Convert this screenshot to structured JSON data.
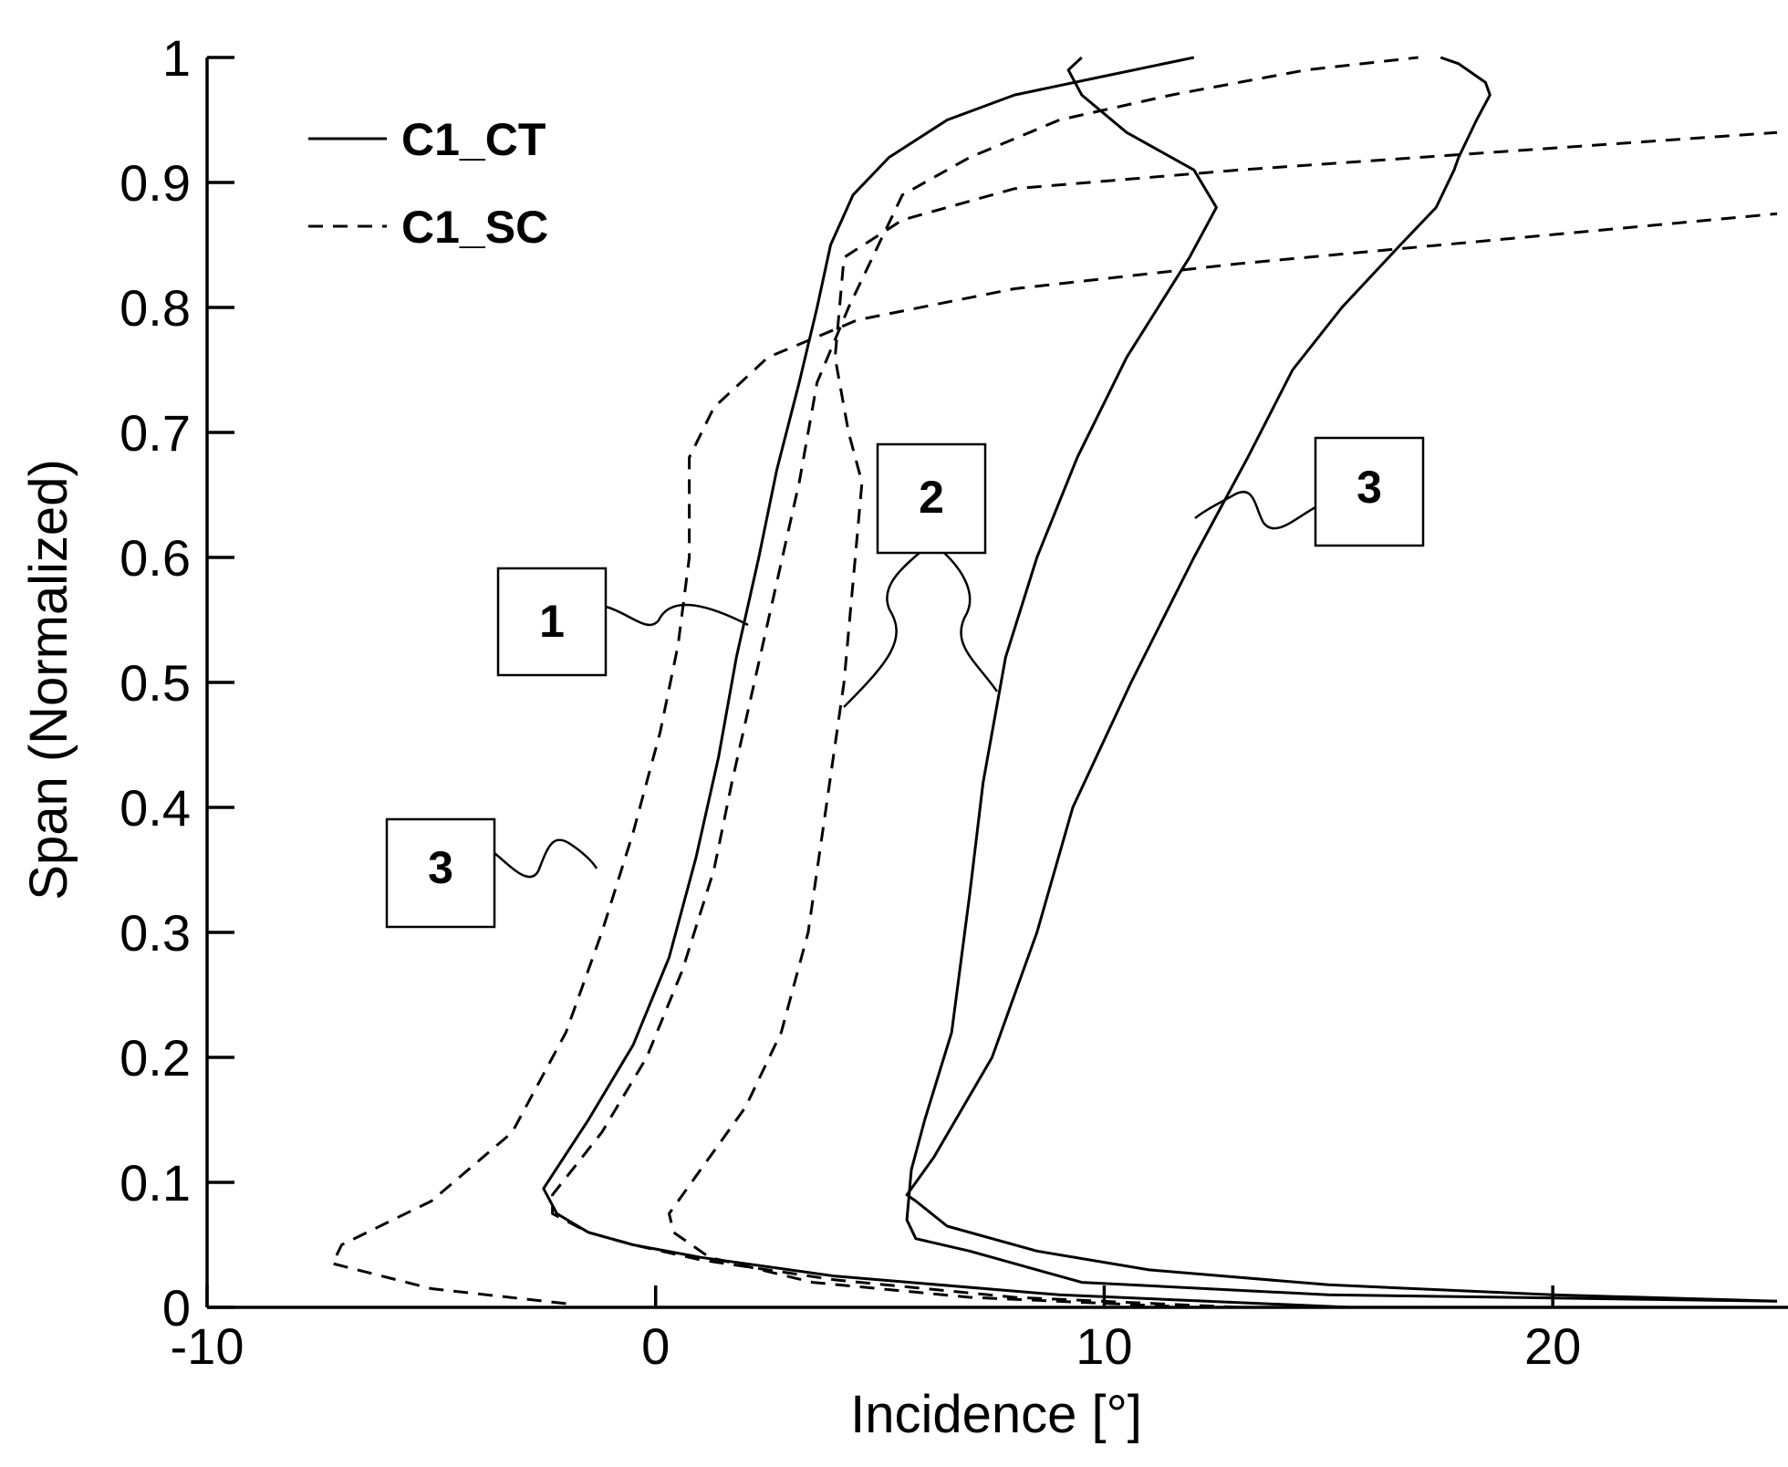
{
  "chart_data": {
    "type": "line",
    "title": "",
    "xlabel": "Incidence [°]",
    "ylabel": "Span (Normalized)",
    "xlim": [
      -10,
      25
    ],
    "ylim": [
      0,
      1
    ],
    "xticks": [
      -10,
      0,
      10,
      20
    ],
    "xtick_labels": [
      "-10",
      "0",
      "10",
      "20"
    ],
    "yticks": [
      0,
      0.1,
      0.2,
      0.3,
      0.4,
      0.5,
      0.6,
      0.7,
      0.8,
      0.9,
      1
    ],
    "ytick_labels": [
      "0",
      "0.1",
      "0.2",
      "0.3",
      "0.4",
      "0.5",
      "0.6",
      "0.7",
      "0.8",
      "0.9",
      "1"
    ],
    "grid": false,
    "legend_position": "top-left",
    "legend": [
      {
        "label": "C1_CT",
        "style": "solid"
      },
      {
        "label": "C1_SC",
        "style": "dashed"
      }
    ],
    "series": [
      {
        "group": "C1_CT",
        "label": "1",
        "style": "solid",
        "x": [
          15.5,
          9.0,
          4.0,
          1.0,
          -0.5,
          -1.5,
          -2.2,
          -2.5,
          -1.5,
          -0.5,
          0.3,
          0.9,
          1.4,
          1.8,
          2.3,
          2.7,
          3.2,
          3.6,
          3.9,
          4.4,
          5.2,
          6.5,
          8.0,
          10.0,
          12.0
        ],
        "y": [
          0.0,
          0.01,
          0.025,
          0.04,
          0.05,
          0.06,
          0.075,
          0.095,
          0.15,
          0.21,
          0.28,
          0.36,
          0.44,
          0.52,
          0.6,
          0.67,
          0.74,
          0.8,
          0.85,
          0.89,
          0.92,
          0.95,
          0.97,
          0.985,
          1.0
        ]
      },
      {
        "group": "C1_SC",
        "label": "1",
        "style": "dashed",
        "x": [
          13.0,
          8.0,
          4.0,
          1.0,
          -0.5,
          -1.5,
          -2.3,
          -2.3,
          -1.2,
          -0.2,
          0.6,
          1.3,
          1.7,
          2.2,
          2.7,
          3.2,
          3.6,
          4.3,
          5.5,
          7.0,
          9.0,
          11.5,
          14.5,
          17.0
        ],
        "y": [
          0.0,
          0.008,
          0.022,
          0.038,
          0.05,
          0.06,
          0.075,
          0.09,
          0.14,
          0.2,
          0.27,
          0.35,
          0.42,
          0.5,
          0.58,
          0.66,
          0.74,
          0.8,
          0.89,
          0.92,
          0.95,
          0.97,
          0.99,
          1.0
        ]
      },
      {
        "group": "C1_CT",
        "label": "2",
        "style": "solid",
        "x": [
          25.0,
          15.0,
          9.5,
          7.0,
          5.8,
          5.6,
          5.7,
          6.0,
          6.6,
          7.0,
          7.3,
          7.8,
          8.5,
          9.4,
          10.5,
          11.9,
          12.5,
          12.0,
          10.5,
          9.5,
          9.2,
          9.5
        ],
        "y": [
          0.005,
          0.01,
          0.02,
          0.045,
          0.055,
          0.07,
          0.11,
          0.15,
          0.22,
          0.33,
          0.42,
          0.52,
          0.6,
          0.68,
          0.76,
          0.84,
          0.88,
          0.91,
          0.94,
          0.97,
          0.99,
          1.0
        ]
      },
      {
        "group": "C1_SC",
        "label": "2",
        "style": "dashed",
        "x": [
          12.0,
          7.0,
          3.5,
          1.2,
          0.4,
          0.3,
          1.0,
          2.0,
          2.8,
          3.4,
          3.8,
          4.2,
          4.5,
          4.6,
          4.3,
          4.0,
          4.2,
          5.5,
          8.0,
          13.0,
          19.0,
          25.0
        ],
        "y": [
          0.0,
          0.008,
          0.02,
          0.04,
          0.06,
          0.075,
          0.11,
          0.16,
          0.22,
          0.3,
          0.4,
          0.5,
          0.62,
          0.66,
          0.7,
          0.76,
          0.84,
          0.87,
          0.895,
          0.91,
          0.925,
          0.94
        ]
      },
      {
        "group": "C1_CT",
        "label": "3",
        "style": "solid",
        "x": [
          25.0,
          20.0,
          15.0,
          11.0,
          8.5,
          6.5,
          5.8,
          5.6,
          6.2,
          7.5,
          8.5,
          9.3,
          10.6,
          12.0,
          13.2,
          14.2,
          15.3,
          16.6,
          17.4,
          17.8,
          17.9,
          18.3,
          18.6,
          18.5,
          17.9,
          17.5
        ],
        "y": [
          0.005,
          0.01,
          0.018,
          0.03,
          0.045,
          0.065,
          0.085,
          0.09,
          0.12,
          0.2,
          0.3,
          0.4,
          0.5,
          0.6,
          0.68,
          0.75,
          0.8,
          0.85,
          0.88,
          0.91,
          0.92,
          0.95,
          0.97,
          0.98,
          0.995,
          1.0
        ]
      },
      {
        "group": "C1_SC",
        "label": "3",
        "style": "dashed",
        "x": [
          -2.0,
          -5.0,
          -7.2,
          -7.0,
          -5.0,
          -3.2,
          -2.0,
          -1.2,
          -0.5,
          0.1,
          0.5,
          0.75,
          0.75,
          1.3,
          2.5,
          4.5,
          8.0,
          13.0,
          19.0,
          25.0
        ],
        "y": [
          0.003,
          0.015,
          0.035,
          0.05,
          0.085,
          0.14,
          0.22,
          0.3,
          0.38,
          0.46,
          0.53,
          0.6,
          0.68,
          0.72,
          0.76,
          0.79,
          0.815,
          0.835,
          0.855,
          0.875
        ]
      }
    ],
    "annotations": [
      {
        "text": "1"
      },
      {
        "text": "2"
      },
      {
        "text": "3"
      },
      {
        "text": "3"
      }
    ]
  }
}
